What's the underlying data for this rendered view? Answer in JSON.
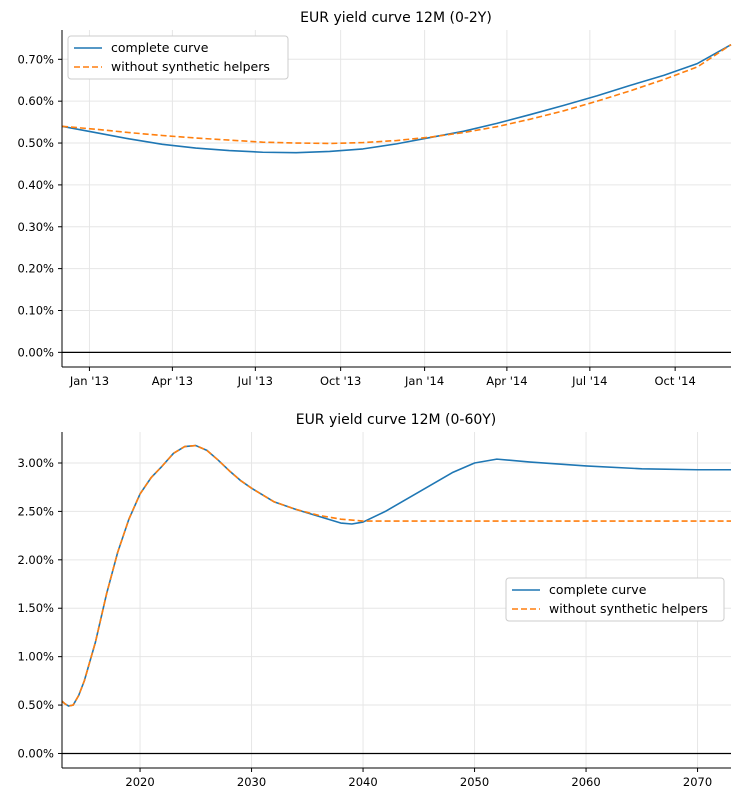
{
  "chart_data": [
    {
      "type": "line",
      "title": "EUR yield curve 12M (0-2Y)",
      "xlabel": "",
      "ylabel": "",
      "x_unit": "years since 2012-12-01",
      "xlim": [
        0.0,
        2.0
      ],
      "ylim": [
        -0.035,
        0.77
      ],
      "y_ticks": [
        0.0,
        0.1,
        0.2,
        0.3,
        0.4,
        0.5,
        0.6,
        0.7
      ],
      "y_tick_labels": [
        "0.00%",
        "0.10%",
        "0.20%",
        "0.30%",
        "0.40%",
        "0.50%",
        "0.60%",
        "0.70%"
      ],
      "x_ticks": [
        0.082,
        0.33,
        0.578,
        0.833,
        1.084,
        1.33,
        1.578,
        1.833
      ],
      "x_tick_labels": [
        "Jan '13",
        "Apr '13",
        "Jul '13",
        "Oct '13",
        "Jan '14",
        "Apr '14",
        "Jul '14",
        "Oct '14"
      ],
      "grid": true,
      "legend_position": "top-left",
      "series": [
        {
          "name": "complete curve",
          "color": "#1f77b4",
          "style": "solid",
          "x": [
            0.0,
            0.1,
            0.2,
            0.3,
            0.4,
            0.5,
            0.6,
            0.7,
            0.8,
            0.9,
            1.0,
            1.1,
            1.2,
            1.3,
            1.4,
            1.5,
            1.6,
            1.7,
            1.8,
            1.9,
            2.0
          ],
          "y": [
            0.54,
            0.525,
            0.51,
            0.497,
            0.488,
            0.482,
            0.478,
            0.477,
            0.48,
            0.486,
            0.498,
            0.513,
            0.528,
            0.547,
            0.568,
            0.59,
            0.613,
            0.638,
            0.662,
            0.69,
            0.735
          ]
        },
        {
          "name": "without synthetic helpers",
          "color": "#ff7f0e",
          "style": "dashed",
          "x": [
            0.0,
            0.1,
            0.2,
            0.3,
            0.4,
            0.5,
            0.6,
            0.7,
            0.8,
            0.9,
            1.0,
            1.1,
            1.2,
            1.3,
            1.4,
            1.5,
            1.6,
            1.7,
            1.8,
            1.9,
            2.0
          ],
          "y": [
            0.54,
            0.533,
            0.525,
            0.518,
            0.512,
            0.507,
            0.502,
            0.5,
            0.499,
            0.501,
            0.506,
            0.514,
            0.525,
            0.539,
            0.557,
            0.577,
            0.6,
            0.625,
            0.652,
            0.682,
            0.735
          ]
        }
      ]
    },
    {
      "type": "line",
      "title": "EUR yield curve 12M (0-60Y)",
      "xlabel": "",
      "ylabel": "",
      "xlim": [
        2013.0,
        2073.0
      ],
      "ylim": [
        -0.15,
        3.32
      ],
      "y_ticks": [
        0.0,
        0.5,
        1.0,
        1.5,
        2.0,
        2.5,
        3.0
      ],
      "y_tick_labels": [
        "0.00%",
        "0.50%",
        "1.00%",
        "1.50%",
        "2.00%",
        "2.50%",
        "3.00%"
      ],
      "x_ticks": [
        2020,
        2030,
        2040,
        2050,
        2060,
        2070
      ],
      "x_tick_labels": [
        "2020",
        "2030",
        "2040",
        "2050",
        "2060",
        "2070"
      ],
      "grid": true,
      "legend_position": "center-right",
      "series": [
        {
          "name": "complete curve",
          "color": "#1f77b4",
          "style": "solid",
          "x": [
            2013.0,
            2013.3,
            2013.6,
            2014.0,
            2014.5,
            2015.0,
            2016.0,
            2017.0,
            2018.0,
            2019.0,
            2020.0,
            2021.0,
            2022.0,
            2023.0,
            2024.0,
            2025.0,
            2026.0,
            2027.0,
            2028.0,
            2029.0,
            2030.0,
            2032.0,
            2034.0,
            2036.0,
            2038.0,
            2039.0,
            2040.0,
            2042.0,
            2045.0,
            2048.0,
            2050.0,
            2052.0,
            2055.0,
            2060.0,
            2065.0,
            2070.0,
            2073.0
          ],
          "y": [
            0.54,
            0.51,
            0.49,
            0.5,
            0.6,
            0.75,
            1.15,
            1.65,
            2.08,
            2.42,
            2.68,
            2.85,
            2.97,
            3.1,
            3.17,
            3.18,
            3.13,
            3.03,
            2.92,
            2.82,
            2.74,
            2.6,
            2.52,
            2.45,
            2.38,
            2.37,
            2.39,
            2.5,
            2.7,
            2.9,
            3.0,
            3.04,
            3.01,
            2.97,
            2.94,
            2.93,
            2.93
          ]
        },
        {
          "name": "without synthetic helpers",
          "color": "#ff7f0e",
          "style": "dashed",
          "x": [
            2013.0,
            2013.3,
            2013.6,
            2014.0,
            2014.5,
            2015.0,
            2016.0,
            2017.0,
            2018.0,
            2019.0,
            2020.0,
            2021.0,
            2022.0,
            2023.0,
            2024.0,
            2025.0,
            2026.0,
            2027.0,
            2028.0,
            2029.0,
            2030.0,
            2032.0,
            2034.0,
            2036.0,
            2038.0,
            2040.0,
            2045.0,
            2050.0,
            2055.0,
            2060.0,
            2065.0,
            2070.0,
            2073.0
          ],
          "y": [
            0.54,
            0.51,
            0.49,
            0.5,
            0.6,
            0.75,
            1.15,
            1.65,
            2.08,
            2.42,
            2.68,
            2.85,
            2.97,
            3.1,
            3.17,
            3.18,
            3.13,
            3.03,
            2.92,
            2.82,
            2.74,
            2.6,
            2.52,
            2.46,
            2.42,
            2.4,
            2.4,
            2.4,
            2.4,
            2.4,
            2.4,
            2.4,
            2.4
          ]
        }
      ]
    }
  ]
}
